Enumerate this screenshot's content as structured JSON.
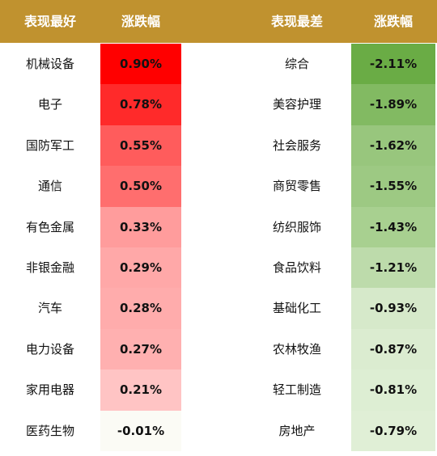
{
  "header": {
    "bg_color": "#c0922f",
    "best_title": "表现最好",
    "best_change": "涨跌幅",
    "worst_title": "表现最差",
    "worst_change": "涨跌幅"
  },
  "chart_data": {
    "type": "table",
    "columns": [
      "表现最好",
      "涨跌幅",
      "表现最差",
      "涨跌幅"
    ],
    "best": [
      {
        "name": "机械设备",
        "change": "0.90%",
        "value": 0.9,
        "color": "#ff0000"
      },
      {
        "name": "电子",
        "change": "0.78%",
        "value": 0.78,
        "color": "#ff2a2a"
      },
      {
        "name": "国防军工",
        "change": "0.55%",
        "value": 0.55,
        "color": "#ff5c5c"
      },
      {
        "name": "通信",
        "change": "0.50%",
        "value": 0.5,
        "color": "#ff6e6e"
      },
      {
        "name": "有色金属",
        "change": "0.33%",
        "value": 0.33,
        "color": "#ff9c9c"
      },
      {
        "name": "非银金融",
        "change": "0.29%",
        "value": 0.29,
        "color": "#ffa8a8"
      },
      {
        "name": "汽车",
        "change": "0.28%",
        "value": 0.28,
        "color": "#ffacac"
      },
      {
        "name": "电力设备",
        "change": "0.27%",
        "value": 0.27,
        "color": "#ffb0b0"
      },
      {
        "name": "家用电器",
        "change": "0.21%",
        "value": 0.21,
        "color": "#ffc4c4"
      },
      {
        "name": "医药生物",
        "change": "-0.01%",
        "value": -0.01,
        "color": "#fbfbf5"
      }
    ],
    "worst": [
      {
        "name": "综合",
        "change": "-2.11%",
        "value": -2.11,
        "color": "#6aac45"
      },
      {
        "name": "美容护理",
        "change": "-1.89%",
        "value": -1.89,
        "color": "#82ba62"
      },
      {
        "name": "社会服务",
        "change": "-1.62%",
        "value": -1.62,
        "color": "#98c67d"
      },
      {
        "name": "商贸零售",
        "change": "-1.55%",
        "value": -1.55,
        "color": "#9dc983"
      },
      {
        "name": "纺织服饰",
        "change": "-1.43%",
        "value": -1.43,
        "color": "#a8d090"
      },
      {
        "name": "食品饮料",
        "change": "-1.21%",
        "value": -1.21,
        "color": "#bddbab"
      },
      {
        "name": "基础化工",
        "change": "-0.93%",
        "value": -0.93,
        "color": "#d6e9ca"
      },
      {
        "name": "农林牧渔",
        "change": "-0.87%",
        "value": -0.87,
        "color": "#dbecd0"
      },
      {
        "name": "轻工制造",
        "change": "-0.81%",
        "value": -0.81,
        "color": "#ddeed3"
      },
      {
        "name": "房地产",
        "change": "-0.79%",
        "value": -0.79,
        "color": "#e0efd6"
      }
    ]
  }
}
